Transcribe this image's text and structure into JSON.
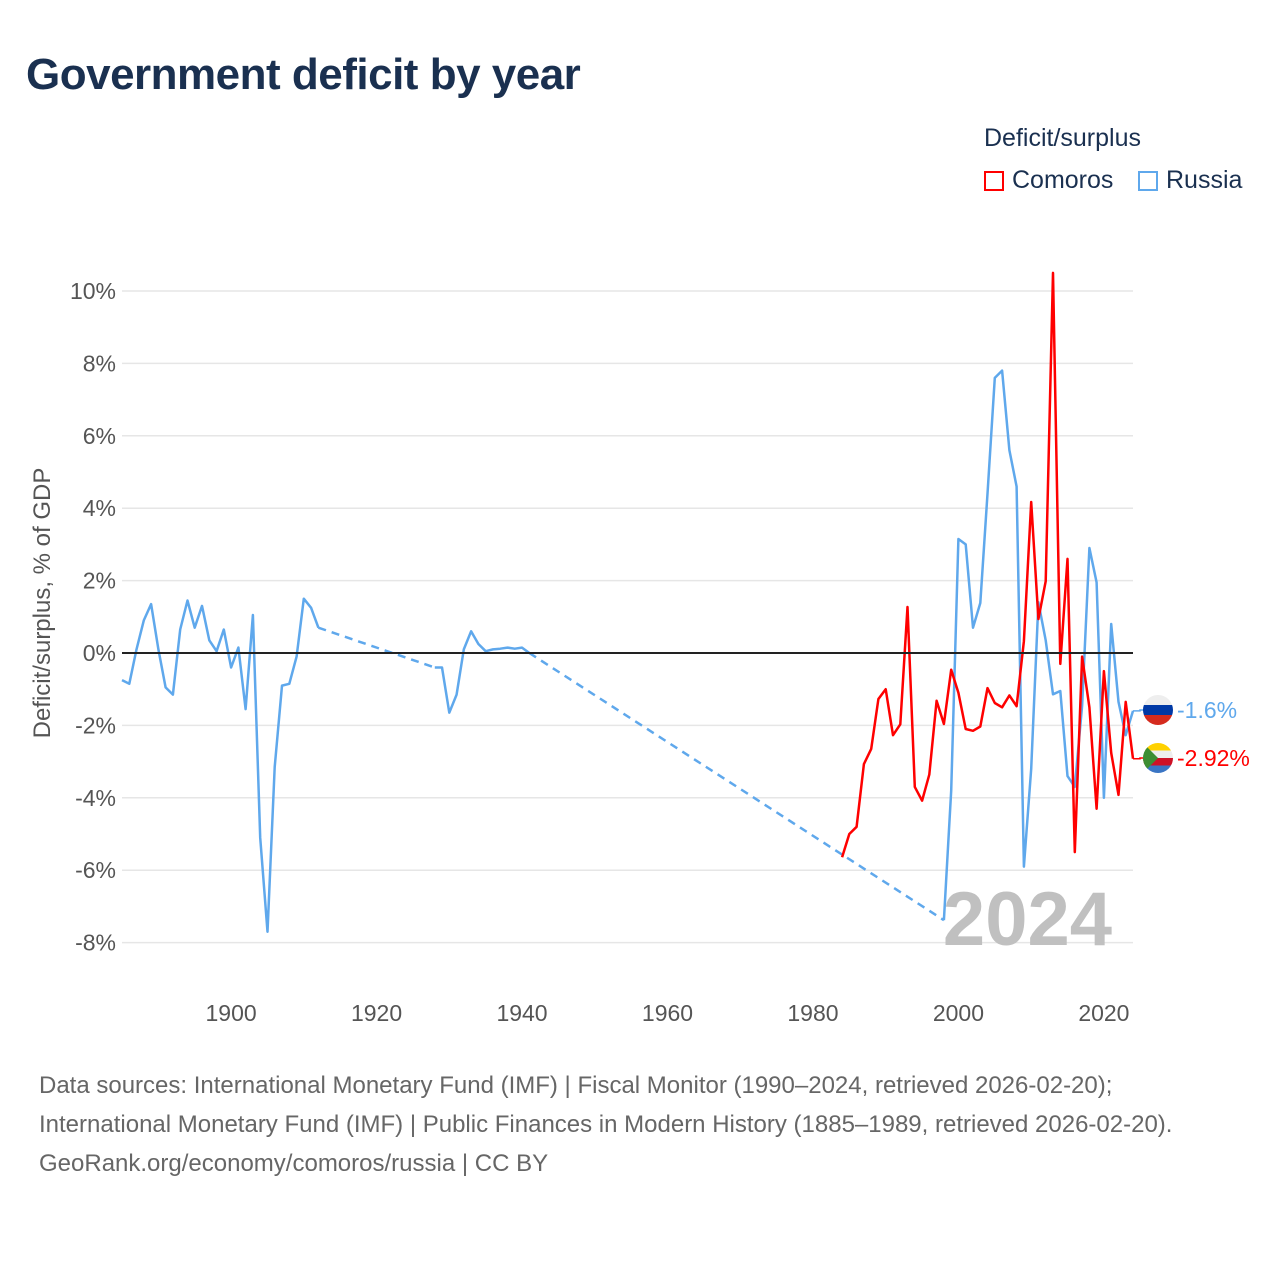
{
  "title": "Government deficit by year",
  "colors": {
    "comoros": "#ff0000",
    "russia": "#5fa8ec",
    "zero": "#222222",
    "grid": "#e6e6e6",
    "watermark": "#c0c0c0"
  },
  "chart_data": {
    "type": "line",
    "title": "Government deficit by year",
    "xlabel": "",
    "ylabel": "Deficit/surplus, % of GDP",
    "xlim": [
      1885,
      2024
    ],
    "ylim": [
      -9,
      11
    ],
    "grid": true,
    "legend_title": "Deficit/surplus",
    "legend_position": "top-right",
    "watermark": "2024",
    "x_ticks": [
      1900,
      1920,
      1940,
      1960,
      1980,
      2000,
      2020
    ],
    "y_ticks": [
      {
        "v": 10,
        "label": "10%"
      },
      {
        "v": 8,
        "label": "8%"
      },
      {
        "v": 6,
        "label": "6%"
      },
      {
        "v": 4,
        "label": "4%"
      },
      {
        "v": 2,
        "label": "2%"
      },
      {
        "v": 0,
        "label": "0%"
      },
      {
        "v": -2,
        "label": "-2%"
      },
      {
        "v": -4,
        "label": "-4%"
      },
      {
        "v": -6,
        "label": "-6%"
      },
      {
        "v": -8,
        "label": "-8%"
      }
    ],
    "series": [
      {
        "name": "Comoros",
        "color": "#ff0000",
        "end_label": "-2.92%",
        "segments": [
          [
            [
              1984,
              -5.64
            ],
            [
              1985,
              -5.0
            ],
            [
              1986,
              -4.8
            ],
            [
              1987,
              -3.07
            ],
            [
              1988,
              -2.65
            ],
            [
              1989,
              -1.27
            ],
            [
              1990,
              -1.0
            ],
            [
              1991,
              -2.27
            ],
            [
              1992,
              -1.97
            ],
            [
              1993,
              1.27
            ],
            [
              1994,
              -3.7
            ],
            [
              1995,
              -4.08
            ],
            [
              1996,
              -3.36
            ],
            [
              1997,
              -1.32
            ],
            [
              1998,
              -1.96
            ],
            [
              1999,
              -0.46
            ],
            [
              2000,
              -1.1
            ],
            [
              2001,
              -2.1
            ],
            [
              2002,
              -2.15
            ],
            [
              2003,
              -2.03
            ],
            [
              2004,
              -0.97
            ],
            [
              2005,
              -1.38
            ],
            [
              2006,
              -1.5
            ],
            [
              2007,
              -1.17
            ],
            [
              2008,
              -1.47
            ],
            [
              2009,
              0.33
            ],
            [
              2010,
              4.17
            ],
            [
              2011,
              0.94
            ],
            [
              2012,
              1.98
            ],
            [
              2013,
              10.5
            ],
            [
              2014,
              -0.3
            ],
            [
              2015,
              2.6
            ],
            [
              2016,
              -5.5
            ],
            [
              2017,
              -0.1
            ],
            [
              2018,
              -1.5
            ],
            [
              2019,
              -4.3
            ],
            [
              2020,
              -0.5
            ],
            [
              2021,
              -2.76
            ],
            [
              2022,
              -3.92
            ],
            [
              2023,
              -1.35
            ],
            [
              2024,
              -2.92
            ]
          ]
        ]
      },
      {
        "name": "Russia",
        "color": "#5fa8ec",
        "end_label": "-1.6%",
        "segments": [
          [
            [
              1885,
              -0.75
            ],
            [
              1886,
              -0.85
            ],
            [
              1887,
              0.1
            ],
            [
              1888,
              0.9
            ],
            [
              1889,
              1.35
            ],
            [
              1890,
              0.1
            ],
            [
              1891,
              -0.95
            ],
            [
              1892,
              -1.15
            ],
            [
              1893,
              0.65
            ],
            [
              1894,
              1.45
            ],
            [
              1895,
              0.7
            ],
            [
              1896,
              1.3
            ],
            [
              1897,
              0.35
            ],
            [
              1898,
              0.05
            ],
            [
              1899,
              0.65
            ],
            [
              1900,
              -0.4
            ],
            [
              1901,
              0.15
            ],
            [
              1902,
              -1.55
            ],
            [
              1903,
              1.05
            ],
            [
              1904,
              -5.1
            ],
            [
              1905,
              -7.7
            ],
            [
              1906,
              -3.15
            ],
            [
              1907,
              -0.9
            ],
            [
              1908,
              -0.85
            ],
            [
              1909,
              -0.1
            ],
            [
              1910,
              1.5
            ],
            [
              1911,
              1.25
            ],
            [
              1912,
              0.7
            ]
          ],
          [
            [
              1928,
              -0.4
            ],
            [
              1929,
              -0.4
            ],
            [
              1930,
              -1.65
            ],
            [
              1931,
              -1.15
            ],
            [
              1932,
              0.1
            ],
            [
              1933,
              0.6
            ],
            [
              1934,
              0.25
            ],
            [
              1935,
              0.05
            ],
            [
              1936,
              0.1
            ],
            [
              1937,
              0.12
            ],
            [
              1938,
              0.15
            ],
            [
              1939,
              0.12
            ],
            [
              1940,
              0.15
            ],
            [
              1941,
              0.0
            ]
          ],
          [
            [
              1998,
              -7.38
            ],
            [
              1999,
              -3.8
            ],
            [
              2000,
              3.15
            ],
            [
              2001,
              3.0
            ],
            [
              2002,
              0.7
            ],
            [
              2003,
              1.38
            ],
            [
              2004,
              4.4
            ],
            [
              2005,
              7.6
            ],
            [
              2006,
              7.8
            ],
            [
              2007,
              5.6
            ],
            [
              2008,
              4.6
            ],
            [
              2009,
              -5.9
            ],
            [
              2010,
              -3.2
            ],
            [
              2011,
              1.4
            ],
            [
              2012,
              0.35
            ],
            [
              2013,
              -1.14
            ],
            [
              2014,
              -1.05
            ],
            [
              2015,
              -3.4
            ],
            [
              2016,
              -3.7
            ],
            [
              2017,
              -1.46
            ],
            [
              2018,
              2.9
            ],
            [
              2019,
              1.95
            ],
            [
              2020,
              -4.0
            ],
            [
              2021,
              0.8
            ],
            [
              2022,
              -1.35
            ],
            [
              2023,
              -2.27
            ],
            [
              2024,
              -1.6
            ]
          ]
        ]
      }
    ]
  },
  "legend": {
    "title": "Deficit/surplus",
    "items": [
      "Comoros",
      "Russia"
    ]
  },
  "footer": {
    "sources": "Data sources: International Monetary Fund (IMF) | Fiscal Monitor (1990–2024, retrieved 2026-02-20); International Monetary Fund (IMF) | Public Finances in Modern History (1885–1989, retrieved 2026-02-20).",
    "credit": "GeoRank.org/economy/comoros/russia | CC BY"
  }
}
